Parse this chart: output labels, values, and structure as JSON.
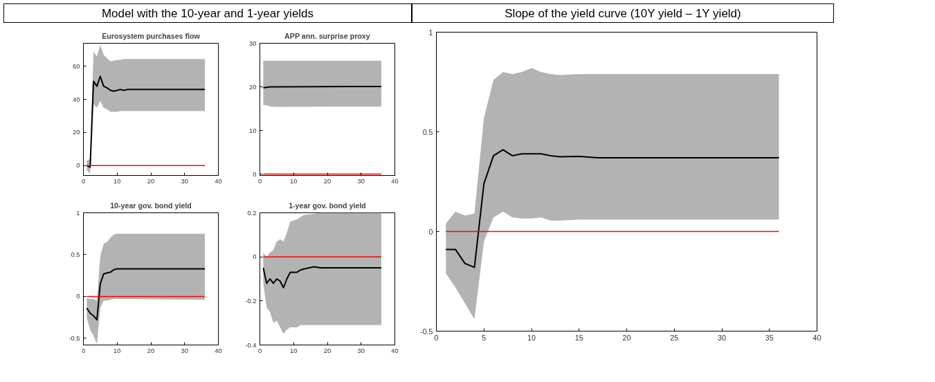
{
  "chart_data": [
    {
      "type": "line",
      "title": "Eurosystem purchases flow",
      "annotations": [
        "Model with the 10-year and 1-year yields"
      ],
      "xlim": [
        0,
        40
      ],
      "ylim": [
        -6,
        74
      ],
      "xticks": [
        0,
        10,
        20,
        30,
        40
      ],
      "yticks": [
        0,
        20,
        40,
        60
      ],
      "grid": false,
      "series": [
        {
          "color": "#000000",
          "x": [
            1,
            2,
            3,
            4,
            5,
            6,
            7,
            8,
            9,
            10,
            11,
            12,
            13,
            36
          ],
          "values": [
            0,
            -1,
            51,
            48,
            54,
            48,
            47,
            45.5,
            45,
            45.5,
            46,
            45.5,
            46,
            46
          ],
          "upper": [
            3,
            4,
            69,
            66,
            73,
            67,
            65,
            63,
            63.5,
            64,
            64,
            64.5,
            64.5,
            64.5
          ],
          "lower": [
            -3,
            -5,
            37,
            35,
            39,
            35,
            34,
            32.5,
            32.5,
            32.5,
            33,
            33,
            33,
            33
          ]
        },
        {
          "color": "#ff0000",
          "x": [
            1,
            36
          ],
          "values": [
            0,
            0
          ]
        }
      ]
    },
    {
      "type": "line",
      "title": "APP ann. surprise proxy",
      "xlim": [
        0,
        40
      ],
      "ylim": [
        -0.3,
        30
      ],
      "xticks": [
        0,
        10,
        20,
        30,
        40
      ],
      "yticks": [
        0,
        10,
        20,
        30
      ],
      "grid": false,
      "series": [
        {
          "color": "#000000",
          "x": [
            1,
            2,
            3,
            5,
            36
          ],
          "values": [
            19.8,
            19.9,
            20,
            20,
            20.1
          ],
          "upper": [
            26,
            26,
            26,
            26,
            26
          ],
          "lower": [
            15.8,
            15.8,
            15.5,
            15.4,
            15.5
          ]
        },
        {
          "color": "#ff0000",
          "x": [
            1,
            36
          ],
          "values": [
            0,
            0
          ]
        }
      ]
    },
    {
      "type": "line",
      "title": "10-year gov. bond yield",
      "xlim": [
        0,
        40
      ],
      "ylim": [
        -0.58,
        1
      ],
      "xticks": [
        0,
        10,
        20,
        30,
        40
      ],
      "yticks": [
        -0.5,
        0,
        0.5,
        1
      ],
      "grid": false,
      "series": [
        {
          "color": "#000000",
          "x": [
            1,
            2,
            3,
            4,
            5,
            6,
            7,
            8,
            9,
            10,
            36
          ],
          "values": [
            -0.14,
            -0.2,
            -0.23,
            -0.28,
            0.15,
            0.27,
            0.28,
            0.29,
            0.32,
            0.33,
            0.33
          ],
          "upper": [
            -0.02,
            -0.03,
            -0.03,
            -0.05,
            0.48,
            0.63,
            0.65,
            0.7,
            0.74,
            0.75,
            0.75
          ],
          "lower": [
            -0.26,
            -0.4,
            -0.47,
            -0.57,
            -0.14,
            -0.05,
            -0.05,
            -0.04,
            -0.03,
            -0.03,
            -0.04
          ]
        },
        {
          "color": "#ff0000",
          "x": [
            1,
            36
          ],
          "values": [
            0,
            0
          ]
        }
      ]
    },
    {
      "type": "line",
      "title": "1-year gov. bond yield",
      "xlim": [
        0,
        40
      ],
      "ylim": [
        -0.4,
        0.2
      ],
      "xticks": [
        0,
        10,
        20,
        30,
        40
      ],
      "yticks": [
        -0.4,
        -0.2,
        0,
        0.2
      ],
      "grid": false,
      "series": [
        {
          "color": "#000000",
          "x": [
            1,
            2,
            3,
            4,
            5,
            6,
            7,
            8,
            9,
            10,
            11,
            12,
            13,
            16,
            18,
            36
          ],
          "values": [
            -0.05,
            -0.12,
            -0.1,
            -0.12,
            -0.1,
            -0.11,
            -0.14,
            -0.1,
            -0.07,
            -0.07,
            -0.07,
            -0.06,
            -0.055,
            -0.045,
            -0.05,
            -0.05
          ],
          "upper": [
            0.02,
            0,
            0.02,
            0.03,
            0.07,
            0.08,
            0.07,
            0.11,
            0.16,
            0.165,
            0.17,
            0.18,
            0.19,
            0.195,
            0.2,
            0.2
          ],
          "lower": [
            -0.12,
            -0.23,
            -0.25,
            -0.3,
            -0.29,
            -0.32,
            -0.35,
            -0.33,
            -0.32,
            -0.32,
            -0.32,
            -0.31,
            -0.31,
            -0.31,
            -0.31,
            -0.31
          ]
        },
        {
          "color": "#ff0000",
          "x": [
            1,
            36
          ],
          "values": [
            0,
            0
          ]
        }
      ]
    },
    {
      "type": "line",
      "title": "Slope of the yield curve (10Y yield – 1Y yield)",
      "xlim": [
        0,
        40
      ],
      "ylim": [
        -0.5,
        1
      ],
      "xticks": [
        0,
        5,
        10,
        15,
        20,
        25,
        30,
        35,
        40
      ],
      "yticks": [
        -0.5,
        0,
        0.5,
        1
      ],
      "grid": false,
      "series": [
        {
          "color": "#000000",
          "x": [
            1,
            2,
            3,
            4,
            5,
            6,
            7,
            8,
            9,
            10,
            11,
            12,
            13,
            15,
            17,
            36
          ],
          "values": [
            -0.09,
            -0.09,
            -0.16,
            -0.18,
            0.24,
            0.38,
            0.41,
            0.38,
            0.39,
            0.39,
            0.39,
            0.38,
            0.375,
            0.377,
            0.37,
            0.37
          ],
          "upper": [
            0.04,
            0.1,
            0.08,
            0.09,
            0.57,
            0.76,
            0.8,
            0.79,
            0.8,
            0.82,
            0.8,
            0.79,
            0.785,
            0.79,
            0.79,
            0.79
          ],
          "lower": [
            -0.21,
            -0.28,
            -0.36,
            -0.44,
            -0.05,
            0.07,
            0.1,
            0.07,
            0.065,
            0.065,
            0.07,
            0.055,
            0.055,
            0.06,
            0.06,
            0.06
          ]
        },
        {
          "color": "#ff0000",
          "x": [
            1,
            36
          ],
          "values": [
            0,
            0
          ]
        }
      ]
    }
  ]
}
